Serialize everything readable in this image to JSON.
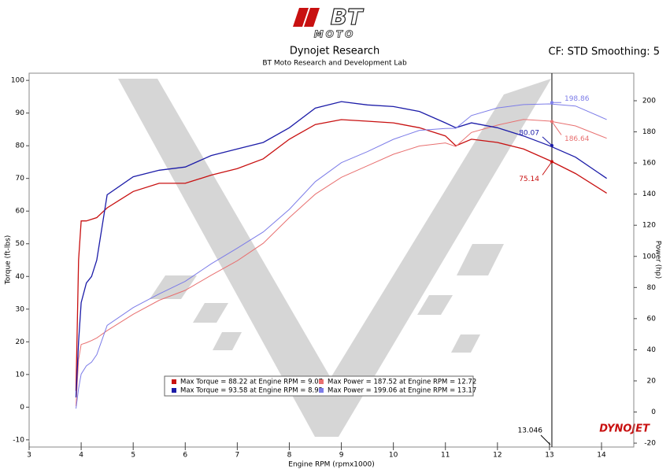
{
  "logo": {
    "text": "BT",
    "subtext": "MOTO"
  },
  "brand": "DYNOJET",
  "chart_data": {
    "type": "line",
    "title": "Dynojet Research",
    "subtitle": "BT Moto Research and Development Lab",
    "settings_label": "CF: STD Smoothing: 5",
    "x_label": "Engine RPM (rpmx1000)",
    "y_label": "Torque (ft-lbs)",
    "y2_label": "Power (hp)",
    "x": [
      3.9,
      3.95,
      4.0,
      4.1,
      4.2,
      4.3,
      4.5,
      5,
      5.5,
      6,
      6.5,
      7,
      7.5,
      8,
      8.5,
      9,
      9.5,
      10,
      10.5,
      11,
      11.2,
      11.5,
      12,
      12.5,
      13,
      13.5,
      14.1
    ],
    "xlim": [
      3,
      14.62
    ],
    "xticks": [
      3,
      4,
      5,
      6,
      7,
      8,
      9,
      10,
      11,
      12,
      13,
      14
    ],
    "ylim": [
      -12.2,
      102.2
    ],
    "yticks": [
      -10,
      0,
      10,
      20,
      30,
      40,
      50,
      60,
      70,
      80,
      90,
      100
    ],
    "y2lim": [
      -22.5,
      217.7
    ],
    "y2ticks": [
      -20,
      0,
      20,
      40,
      60,
      80,
      100,
      120,
      140,
      160,
      180,
      200
    ],
    "cursor_x": 13.046,
    "series": [
      {
        "name": "Max Torque = 88.22 at Engine RPM = 9.07",
        "color": "#c81010",
        "axis": "y",
        "cursor_value": 75.14,
        "values": [
          5,
          45,
          57,
          57,
          57.5,
          58,
          61,
          66,
          68.5,
          68.5,
          71,
          73,
          76,
          82,
          86.5,
          88,
          87.5,
          87,
          85.5,
          83,
          80,
          82,
          81,
          79,
          75.5,
          71.5,
          65.5
        ]
      },
      {
        "name": "Max Power = 187.52 at Engine RPM = 12.72",
        "color": "#e87070",
        "axis": "y2",
        "cursor_value": 186.64,
        "values": [
          3.7,
          33.8,
          43.4,
          44.5,
          45.9,
          47.6,
          52.3,
          62.8,
          71.8,
          78.2,
          87.9,
          97.2,
          108.4,
          124.9,
          140.0,
          150.8,
          158.2,
          165.6,
          170.9,
          172.9,
          170.6,
          179.6,
          184.3,
          188.0,
          186.9,
          183.8,
          175.9
        ]
      },
      {
        "name": "Max Torque = 93.58 at Engine RPM = 8.92",
        "color": "#1c1ca8",
        "axis": "y",
        "cursor_value": 80.07,
        "values": [
          3,
          20,
          32,
          38,
          40,
          45,
          65,
          70.5,
          72.5,
          73.5,
          77,
          79,
          81,
          85.5,
          91.5,
          93.5,
          92.5,
          92,
          90.5,
          87,
          85.5,
          87,
          85.5,
          83,
          80,
          76.5,
          70
        ]
      },
      {
        "name": "Max Power = 199.06 at Engine RPM = 13.17",
        "color": "#7c7ce8",
        "axis": "y2",
        "cursor_value": 198.86,
        "values": [
          2.2,
          15.0,
          24.4,
          29.7,
          32.0,
          36.8,
          55.7,
          67.1,
          75.9,
          84.0,
          95.2,
          105.3,
          115.7,
          130.2,
          148.0,
          160.2,
          167.3,
          175.2,
          181.0,
          182.2,
          182.3,
          190.5,
          195.4,
          197.5,
          198.0,
          196.6,
          187.9
        ]
      }
    ]
  }
}
